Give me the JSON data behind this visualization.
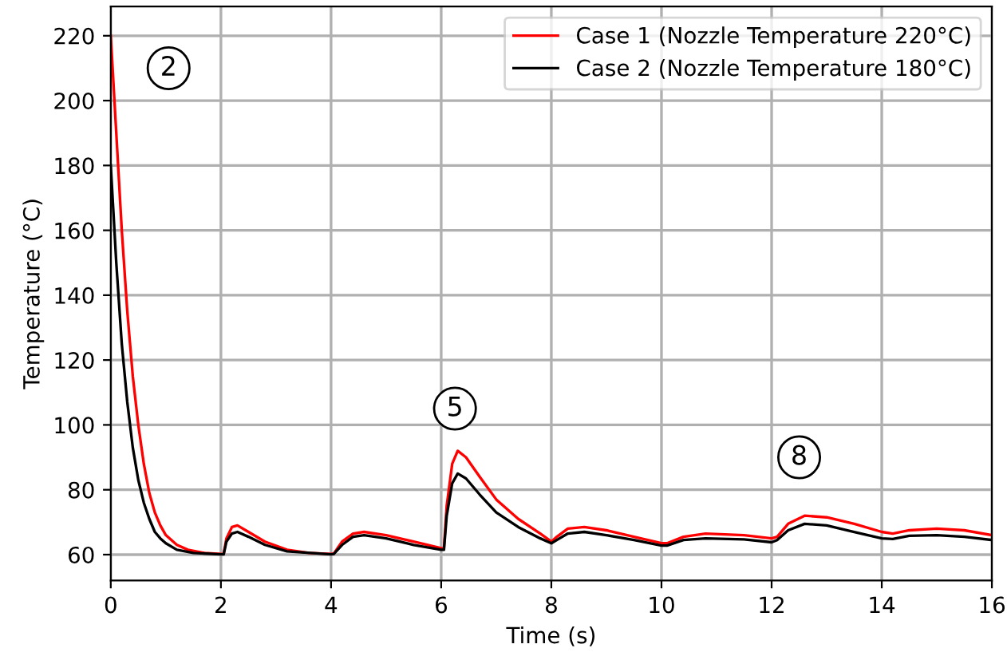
{
  "chart_data": {
    "type": "line",
    "xlabel": "Time (s)",
    "ylabel": "Temperature (°C)",
    "xlim": [
      0,
      16
    ],
    "xticks": [
      0,
      2,
      4,
      6,
      8,
      10,
      12,
      14,
      16
    ],
    "ylim": [
      52,
      229
    ],
    "yticks": [
      60,
      80,
      100,
      120,
      140,
      160,
      180,
      200,
      220
    ],
    "grid": true,
    "legend": "top right",
    "annotations": [
      {
        "text": "2",
        "x": 1.05,
        "y": 210
      },
      {
        "text": "5",
        "x": 6.25,
        "y": 105
      },
      {
        "text": "8",
        "x": 12.5,
        "y": 90
      }
    ],
    "series": [
      {
        "name": "Case 1 (Nozzle Temperature 220°C)",
        "color": "#ff0000",
        "x": [
          0,
          0.1,
          0.2,
          0.3,
          0.4,
          0.5,
          0.6,
          0.7,
          0.8,
          0.9,
          1.0,
          1.2,
          1.4,
          1.7,
          2.0,
          2.05,
          2.1,
          2.2,
          2.3,
          2.5,
          2.8,
          3.2,
          3.6,
          4.0,
          4.05,
          4.2,
          4.4,
          4.6,
          5.0,
          5.5,
          6.0,
          6.05,
          6.1,
          6.2,
          6.3,
          6.45,
          6.7,
          7.0,
          7.4,
          7.8,
          8.0,
          8.1,
          8.3,
          8.6,
          9.0,
          9.5,
          10.0,
          10.1,
          10.4,
          10.8,
          11.5,
          12.0,
          12.1,
          12.3,
          12.6,
          13.0,
          13.5,
          14.0,
          14.2,
          14.5,
          15.0,
          15.5,
          16.0
        ],
        "values": [
          220,
          190,
          160,
          135,
          115,
          100,
          88,
          79,
          73,
          69,
          66,
          63,
          61.5,
          60.5,
          60.2,
          60.2,
          65,
          68.5,
          69,
          67,
          64,
          61.5,
          60.5,
          60.2,
          60.3,
          64,
          66.5,
          67,
          66,
          64,
          62,
          62,
          75,
          88,
          92,
          90,
          84,
          77,
          71,
          66.5,
          64,
          65.5,
          68,
          68.5,
          67.5,
          65.5,
          63.5,
          63.5,
          65.5,
          66.5,
          66,
          65,
          65.5,
          69.5,
          72,
          71.5,
          69.5,
          67,
          66.5,
          67.5,
          68,
          67.5,
          66
        ]
      },
      {
        "name": "Case 2 (Nozzle Temperature 180°C)",
        "color": "#000000",
        "x": [
          0,
          0.1,
          0.2,
          0.3,
          0.4,
          0.5,
          0.6,
          0.7,
          0.8,
          0.9,
          1.0,
          1.2,
          1.5,
          2.0,
          2.05,
          2.1,
          2.2,
          2.3,
          2.5,
          2.8,
          3.2,
          4.0,
          4.05,
          4.2,
          4.4,
          4.6,
          5.0,
          5.5,
          6.0,
          6.05,
          6.1,
          6.2,
          6.3,
          6.45,
          6.7,
          7.0,
          7.4,
          7.8,
          8.0,
          8.1,
          8.3,
          8.6,
          9.0,
          9.5,
          10.0,
          10.1,
          10.4,
          10.8,
          11.5,
          12.0,
          12.1,
          12.3,
          12.6,
          13.0,
          13.5,
          14.0,
          14.2,
          14.5,
          15.0,
          15.5,
          16.0
        ],
        "values": [
          180,
          150,
          125,
          107,
          93,
          83,
          76,
          71,
          67,
          65,
          63.5,
          61.5,
          60.5,
          60.1,
          60.1,
          64,
          66.5,
          67,
          65.5,
          63,
          61,
          60.1,
          60.2,
          63,
          65.5,
          66,
          65,
          63,
          61.5,
          61.5,
          72,
          82,
          85,
          83.5,
          78.5,
          73,
          68.5,
          65,
          63.5,
          64.5,
          66.5,
          67,
          66,
          64.5,
          62.8,
          62.8,
          64.5,
          65,
          64.7,
          63.8,
          64.5,
          67.5,
          69.5,
          69,
          67,
          65,
          64.8,
          65.8,
          66,
          65.5,
          64.5
        ]
      }
    ]
  }
}
